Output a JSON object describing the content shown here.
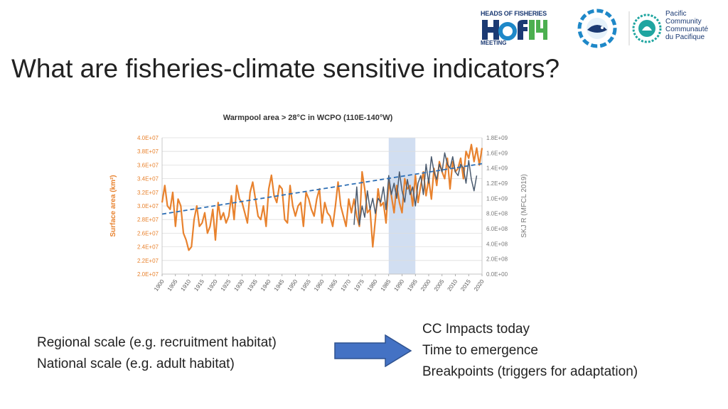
{
  "slide": {
    "title": "What are fisheries-climate sensitive indicators?",
    "left_lines": [
      "Regional scale (e.g. recruitment habitat)",
      "National scale (e.g. adult habitat)"
    ],
    "right_lines": [
      "CC Impacts today",
      "Time to emergence",
      "Breakpoints (triggers for adaptation)"
    ],
    "arrow_color": "#4472c4"
  },
  "logos": {
    "hof_top": "HEADS OF FISHERIES",
    "hof_bottom": "MEETING",
    "spc_lines": [
      "Pacific",
      "Community",
      "Communauté",
      "du Pacifique"
    ]
  },
  "chart_data": {
    "type": "line",
    "title": "Warmpool area > 28°C in WCPO (110E-140°W)",
    "ylabel": "Surface area (km²)",
    "y2label": "SKJ R (MFCL 2019)",
    "xlim": [
      1900,
      2020
    ],
    "ylim": [
      20000000,
      40000000
    ],
    "y2lim": [
      0,
      1800000000
    ],
    "x_ticks": [
      "1900",
      "1905",
      "1910",
      "1915",
      "1920",
      "1925",
      "1930",
      "1935",
      "1940",
      "1945",
      "1950",
      "1955",
      "1960",
      "1965",
      "1970",
      "1975",
      "1980",
      "1985",
      "1990",
      "1995",
      "2000",
      "2005",
      "2010",
      "2015",
      "2020"
    ],
    "y_ticks": [
      "2.0E+07",
      "2.2E+07",
      "2.4E+07",
      "2.6E+07",
      "2.8E+07",
      "3.0E+07",
      "3.2E+07",
      "3.4E+07",
      "3.6E+07",
      "3.8E+07",
      "4.0E+07"
    ],
    "y2_ticks": [
      "0.0E+00",
      "2.0E+08",
      "4.0E+08",
      "6.0E+08",
      "8.0E+08",
      "1.0E+09",
      "1.2E+09",
      "1.4E+09",
      "1.6E+09",
      "1.8E+09"
    ],
    "highlight_band": [
      1985,
      1995
    ],
    "grid": true,
    "colors": {
      "warmpool": "#e8822e",
      "skj": "#4a5a6e",
      "trend": "#2e6fb5",
      "band": "#c9d8ee",
      "title": "#333333",
      "left_axis": "#e8822e",
      "right_axis": "#7a7a7a"
    },
    "series": [
      {
        "axis": "left",
        "x": [
          1900,
          1901,
          1902,
          1903,
          1904,
          1905,
          1906,
          1907,
          1908,
          1909,
          1910,
          1911,
          1912,
          1913,
          1914,
          1915,
          1916,
          1917,
          1918,
          1919,
          1920,
          1921,
          1922,
          1923,
          1924,
          1925,
          1926,
          1927,
          1928,
          1929,
          1930,
          1931,
          1932,
          1933,
          1934,
          1935,
          1936,
          1937,
          1938,
          1939,
          1940,
          1941,
          1942,
          1943,
          1944,
          1945,
          1946,
          1947,
          1948,
          1949,
          1950,
          1951,
          1952,
          1953,
          1954,
          1955,
          1956,
          1957,
          1958,
          1959,
          1960,
          1961,
          1962,
          1963,
          1964,
          1965,
          1966,
          1967,
          1968,
          1969,
          1970,
          1971,
          1972,
          1973,
          1974,
          1975,
          1976,
          1977,
          1978,
          1979,
          1980,
          1981,
          1982,
          1983,
          1984,
          1985,
          1986,
          1987,
          1988,
          1989,
          1990,
          1991,
          1992,
          1993,
          1994,
          1995,
          1996,
          1997,
          1998,
          1999,
          2000,
          2001,
          2002,
          2003,
          2004,
          2005,
          2006,
          2007,
          2008,
          2009,
          2010,
          2011,
          2012,
          2013,
          2014,
          2015,
          2016,
          2017,
          2018,
          2019,
          2020
        ],
        "values": [
          30500000,
          33000000,
          30000000,
          29500000,
          32000000,
          27000000,
          31000000,
          30000000,
          26000000,
          25000000,
          23500000,
          24000000,
          28000000,
          30000000,
          27000000,
          27500000,
          29000000,
          26000000,
          27000000,
          29500000,
          25000000,
          30500000,
          28000000,
          29000000,
          27500000,
          28500000,
          31500000,
          28000000,
          33000000,
          31000000,
          30500000,
          29000000,
          27500000,
          32000000,
          33500000,
          31000000,
          28500000,
          28000000,
          30000000,
          27000000,
          32500000,
          34500000,
          31500000,
          30500000,
          33000000,
          32500000,
          28000000,
          27500000,
          33000000,
          30000000,
          28500000,
          30000000,
          30500000,
          27000000,
          32000000,
          31000000,
          29500000,
          28500000,
          31000000,
          32500000,
          27500000,
          30500000,
          29000000,
          28500000,
          27000000,
          30000000,
          33500000,
          30000000,
          28500000,
          27000000,
          31000000,
          29000000,
          31000000,
          28500000,
          27000000,
          35000000,
          32500000,
          29000000,
          29500000,
          24000000,
          28000000,
          32500000,
          30000000,
          30500000,
          27500000,
          33500000,
          31500000,
          29000000,
          33000000,
          30500000,
          29000000,
          34000000,
          32500000,
          33000000,
          30000000,
          34500000,
          30500000,
          33000000,
          35000000,
          31500000,
          34000000,
          31000000,
          35500000,
          33000000,
          36500000,
          35000000,
          34000000,
          37000000,
          32500000,
          36500000,
          35000000,
          35500000,
          37000000,
          34000000,
          38000000,
          37000000,
          39000000,
          36500000,
          38500000,
          36000000,
          38500000
        ]
      },
      {
        "axis": "right",
        "x": [
          1972,
          1973,
          1974,
          1975,
          1976,
          1977,
          1978,
          1979,
          1980,
          1981,
          1982,
          1983,
          1984,
          1985,
          1986,
          1987,
          1988,
          1989,
          1990,
          1991,
          1992,
          1993,
          1994,
          1995,
          1996,
          1997,
          1998,
          1999,
          2000,
          2001,
          2002,
          2003,
          2004,
          2005,
          2006,
          2007,
          2008,
          2009,
          2010,
          2011,
          2012,
          2013,
          2014,
          2015,
          2016,
          2017,
          2018
        ],
        "values": [
          650000000,
          1150000000,
          650000000,
          900000000,
          750000000,
          1100000000,
          850000000,
          1000000000,
          800000000,
          1000000000,
          950000000,
          1150000000,
          850000000,
          1300000000,
          1050000000,
          1200000000,
          1000000000,
          1350000000,
          1100000000,
          950000000,
          1250000000,
          1050000000,
          1150000000,
          900000000,
          1200000000,
          1300000000,
          1050000000,
          1450000000,
          1200000000,
          1550000000,
          1350000000,
          1250000000,
          1450000000,
          1350000000,
          1600000000,
          1450000000,
          1400000000,
          1550000000,
          1350000000,
          1300000000,
          1450000000,
          1400000000,
          1200000000,
          1500000000,
          1250000000,
          1100000000,
          1300000000
        ]
      },
      {
        "axis": "left",
        "x": [
          1900,
          2020
        ],
        "values": [
          28800000,
          36200000
        ]
      }
    ]
  }
}
